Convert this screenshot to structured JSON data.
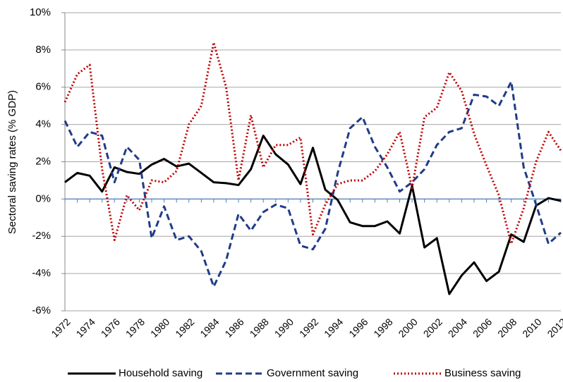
{
  "chart_data": {
    "type": "line",
    "y_label": "Sectoral saving rates (% GDP)",
    "x": [
      1972,
      1973,
      1974,
      1975,
      1976,
      1977,
      1978,
      1979,
      1980,
      1981,
      1982,
      1983,
      1984,
      1985,
      1986,
      1987,
      1988,
      1989,
      1990,
      1991,
      1992,
      1993,
      1994,
      1995,
      1996,
      1997,
      1998,
      1999,
      2000,
      2001,
      2002,
      2003,
      2004,
      2005,
      2006,
      2007,
      2008,
      2009,
      2010,
      2011,
      2012
    ],
    "xlim": [
      1972,
      2012
    ],
    "xticks": [
      1972,
      1974,
      1976,
      1978,
      1980,
      1982,
      1984,
      1986,
      1988,
      1990,
      1992,
      1994,
      1996,
      1998,
      2000,
      2002,
      2004,
      2006,
      2008,
      2010,
      2012
    ],
    "ylim": [
      -6,
      10
    ],
    "yticks": [
      {
        "value": -6,
        "label": "-6%"
      },
      {
        "value": -4,
        "label": "-4%"
      },
      {
        "value": -2,
        "label": "-2%"
      },
      {
        "value": 0,
        "label": "0%"
      },
      {
        "value": 2,
        "label": "2%"
      },
      {
        "value": 4,
        "label": "4%"
      },
      {
        "value": 6,
        "label": "6%"
      },
      {
        "value": 8,
        "label": "8%"
      },
      {
        "value": 10,
        "label": "10%"
      }
    ],
    "grid": true,
    "legend": "bottom",
    "series": [
      {
        "name": "Household saving",
        "color": "#000000",
        "dash": "solid",
        "values": [
          0.9,
          1.4,
          1.25,
          0.4,
          1.7,
          1.45,
          1.35,
          1.85,
          2.15,
          1.75,
          1.9,
          1.4,
          0.9,
          0.85,
          0.75,
          1.6,
          3.4,
          2.4,
          1.85,
          0.8,
          2.75,
          0.5,
          -0.05,
          -1.25,
          -1.45,
          -1.45,
          -1.2,
          -1.85,
          0.7,
          -2.6,
          -2.1,
          -5.1,
          -4.1,
          -3.4,
          -4.4,
          -3.9,
          -1.9,
          -2.3,
          -0.35,
          0.05,
          -0.1
        ]
      },
      {
        "name": "Government saving",
        "color": "#1f3c88",
        "dash": "dashed",
        "values": [
          4.2,
          2.8,
          3.6,
          3.4,
          0.9,
          2.8,
          2.1,
          -2.1,
          -0.4,
          -2.2,
          -2.0,
          -2.8,
          -4.7,
          -3.3,
          -0.8,
          -1.7,
          -0.7,
          -0.3,
          -0.5,
          -2.5,
          -2.7,
          -1.6,
          1.4,
          3.8,
          4.4,
          2.8,
          1.7,
          0.4,
          0.9,
          1.6,
          2.9,
          3.6,
          3.8,
          5.6,
          5.5,
          5.0,
          6.3,
          1.7,
          -0.3,
          -2.4,
          -1.8
        ]
      },
      {
        "name": "Business saving",
        "color": "#c00000",
        "dash": "dotted",
        "values": [
          5.2,
          6.7,
          7.2,
          1.6,
          -2.2,
          0.2,
          -0.6,
          1.0,
          0.9,
          1.5,
          4.0,
          5.0,
          8.4,
          6.0,
          1.0,
          4.5,
          1.7,
          2.9,
          2.9,
          3.3,
          -1.9,
          -0.3,
          0.8,
          1.0,
          1.0,
          1.5,
          2.4,
          3.6,
          0.6,
          4.4,
          4.9,
          6.8,
          5.8,
          3.5,
          1.8,
          0.2,
          -2.4,
          -0.5,
          2.0,
          3.6,
          2.6
        ]
      }
    ]
  }
}
